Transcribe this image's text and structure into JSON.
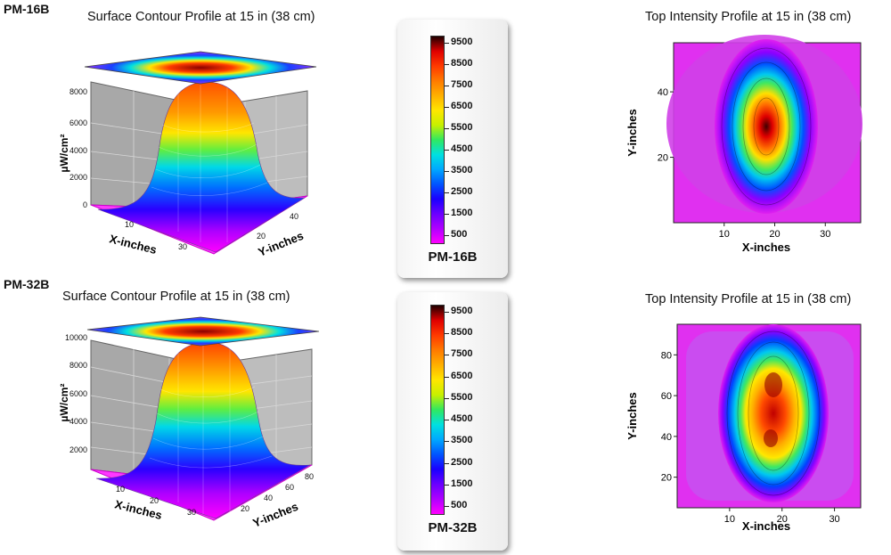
{
  "colorscale": [
    "#ff00ff",
    "#b000ff",
    "#6a00ff",
    "#1a00ff",
    "#0055ff",
    "#00a8ff",
    "#00e0e0",
    "#30e860",
    "#c8f000",
    "#ffe600",
    "#ffb000",
    "#ff7a00",
    "#ff3a00",
    "#e00000",
    "#200000"
  ],
  "chart_data": [
    {
      "model": "PM-16B",
      "type": "heatmap",
      "title": "Surface Contour Profile at 15 in (38 cm)",
      "xlabel": "X-inches",
      "ylabel": "Y-inches",
      "zlabel": "µW/cm²",
      "x_ticks": [
        "10",
        "30"
      ],
      "y_ticks": [
        "20",
        "40"
      ],
      "z_ticks": [
        "0",
        "2000",
        "4000",
        "6000",
        "8000"
      ],
      "z_range": [
        0,
        9500
      ]
    },
    {
      "model": "PM-16B",
      "type": "heatmap",
      "title": "Top Intensity Profile at 15 in (38 cm)",
      "xlabel": "X-inches",
      "ylabel": "Y-inches",
      "x_ticks": [
        "10",
        "20",
        "30"
      ],
      "y_ticks": [
        "20",
        "40"
      ],
      "xlim": [
        0,
        37
      ],
      "ylim": [
        0,
        55
      ]
    },
    {
      "model": "PM-16B",
      "type": "legend",
      "ticks": [
        "9500",
        "8500",
        "7500",
        "6500",
        "5500",
        "4500",
        "3500",
        "2500",
        "1500",
        "500"
      ],
      "label": "PM-16B"
    },
    {
      "model": "PM-32B",
      "type": "heatmap",
      "title": "Surface Contour Profile at 15 in (38 cm)",
      "xlabel": "X-inches",
      "ylabel": "Y-inches",
      "zlabel": "µW/cm²",
      "x_ticks": [
        "10",
        "20",
        "30"
      ],
      "y_ticks": [
        "20",
        "40",
        "60",
        "80"
      ],
      "z_ticks": [
        "2000",
        "4000",
        "6000",
        "8000",
        "10000"
      ],
      "z_range": [
        0,
        10000
      ]
    },
    {
      "model": "PM-32B",
      "type": "heatmap",
      "title": "Top Intensity Profile at 15 in (38 cm)",
      "xlabel": "X-inches",
      "ylabel": "Y-inches",
      "x_ticks": [
        "10",
        "20",
        "30"
      ],
      "y_ticks": [
        "20",
        "40",
        "60",
        "80"
      ],
      "xlim": [
        0,
        35
      ],
      "ylim": [
        5,
        95
      ]
    },
    {
      "model": "PM-32B",
      "type": "legend",
      "ticks": [
        "9500",
        "8500",
        "7500",
        "6500",
        "5500",
        "4500",
        "3500",
        "2500",
        "1500",
        "500"
      ],
      "label": "PM-32B"
    }
  ]
}
